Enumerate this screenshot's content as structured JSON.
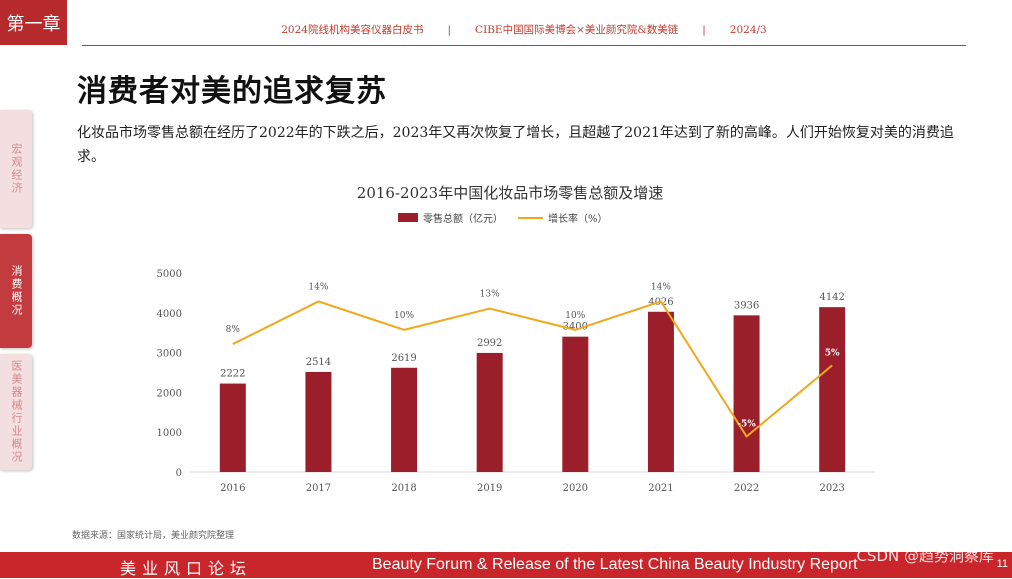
{
  "chapter_tab": "第一章",
  "header": {
    "items": [
      "2024院线机构美容仪器白皮书",
      "CIBE中国国际美博会×美业颜究院&数美链",
      "2024/3"
    ],
    "separator": "|"
  },
  "side_nav": {
    "items": [
      {
        "label": "宏观经济",
        "active": false
      },
      {
        "label": "消费概况",
        "active": true
      },
      {
        "label": "医美器械行业概况",
        "active": false
      }
    ]
  },
  "page": {
    "title": "消费者对美的追求复苏",
    "description": "化妆品市场零售总额在经历了2022年的下跌之后，2023年又再次恢复了增长，且超越了2021年达到了新的高峰。人们开始恢复对美的消费追求。"
  },
  "chart_data": {
    "type": "bar",
    "title": "2016-2023年中国化妆品市场零售总额及增速",
    "categories": [
      "2016",
      "2017",
      "2018",
      "2019",
      "2020",
      "2021",
      "2022",
      "2023"
    ],
    "series": [
      {
        "name": "零售总额（亿元）",
        "type": "bar",
        "values": [
          2222,
          2514,
          2619,
          2992,
          3400,
          4026,
          3936,
          4142
        ],
        "color": "#9b1f2a"
      },
      {
        "name": "增长率（%）",
        "type": "line",
        "values": [
          8,
          14,
          10,
          13,
          10,
          14,
          -5,
          5
        ],
        "labels": [
          "8%",
          "14%",
          "10%",
          "13%",
          "10%",
          "14%",
          "-5%",
          "5%"
        ],
        "color": "#f2a71b"
      }
    ],
    "ylim": [
      0,
      5000
    ],
    "yticks": [
      "0",
      "1000",
      "2000",
      "3000",
      "4000",
      "5000"
    ],
    "legend_position": "top-center",
    "grid": false
  },
  "source_note": "数据来源：国家统计局，美业颜究院整理",
  "footer": {
    "left": "美业风口论坛",
    "right": "Beauty Forum & Release of the Latest China Beauty Industry Report",
    "page_number": "11",
    "watermark": "CSDN @趋势洞察库"
  }
}
